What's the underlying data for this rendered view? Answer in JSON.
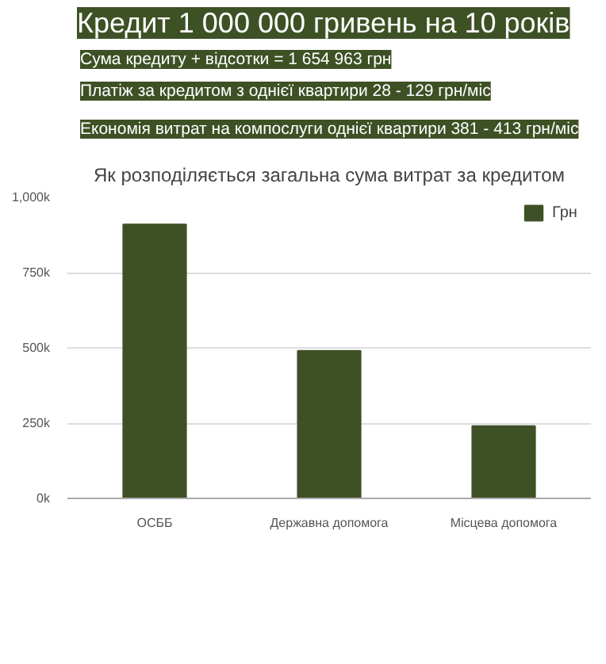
{
  "chart_data": {
    "type": "bar",
    "title": "Кредит 1 000 000 гривень на 10 років",
    "annotations": [
      "Сума кредиту + відсотки = 1 654 963 грн",
      "Платіж за кредитом з однієї квартири 28 - 129 грн/міс",
      "Економія витрат на компослуги однієї квартири 381 - 413 грн/міс"
    ],
    "subtitle": "Як розподіляється загальна сума витрат за кредитом",
    "categories": [
      "ОСББ",
      "Державна допомога",
      "Місцева допомога"
    ],
    "series": [
      {
        "name": "Грн",
        "color": "#3e5126",
        "values": [
          910000,
          490000,
          240000
        ]
      }
    ],
    "ylim": [
      0,
      1000000
    ],
    "yticks": [
      {
        "value": 0,
        "label": "0k"
      },
      {
        "value": 250000,
        "label": "250k"
      },
      {
        "value": 500000,
        "label": "500k"
      },
      {
        "value": 750000,
        "label": "750k"
      },
      {
        "value": 1000000,
        "label": "1,000k"
      }
    ],
    "grid": "y",
    "legend": "top right"
  }
}
